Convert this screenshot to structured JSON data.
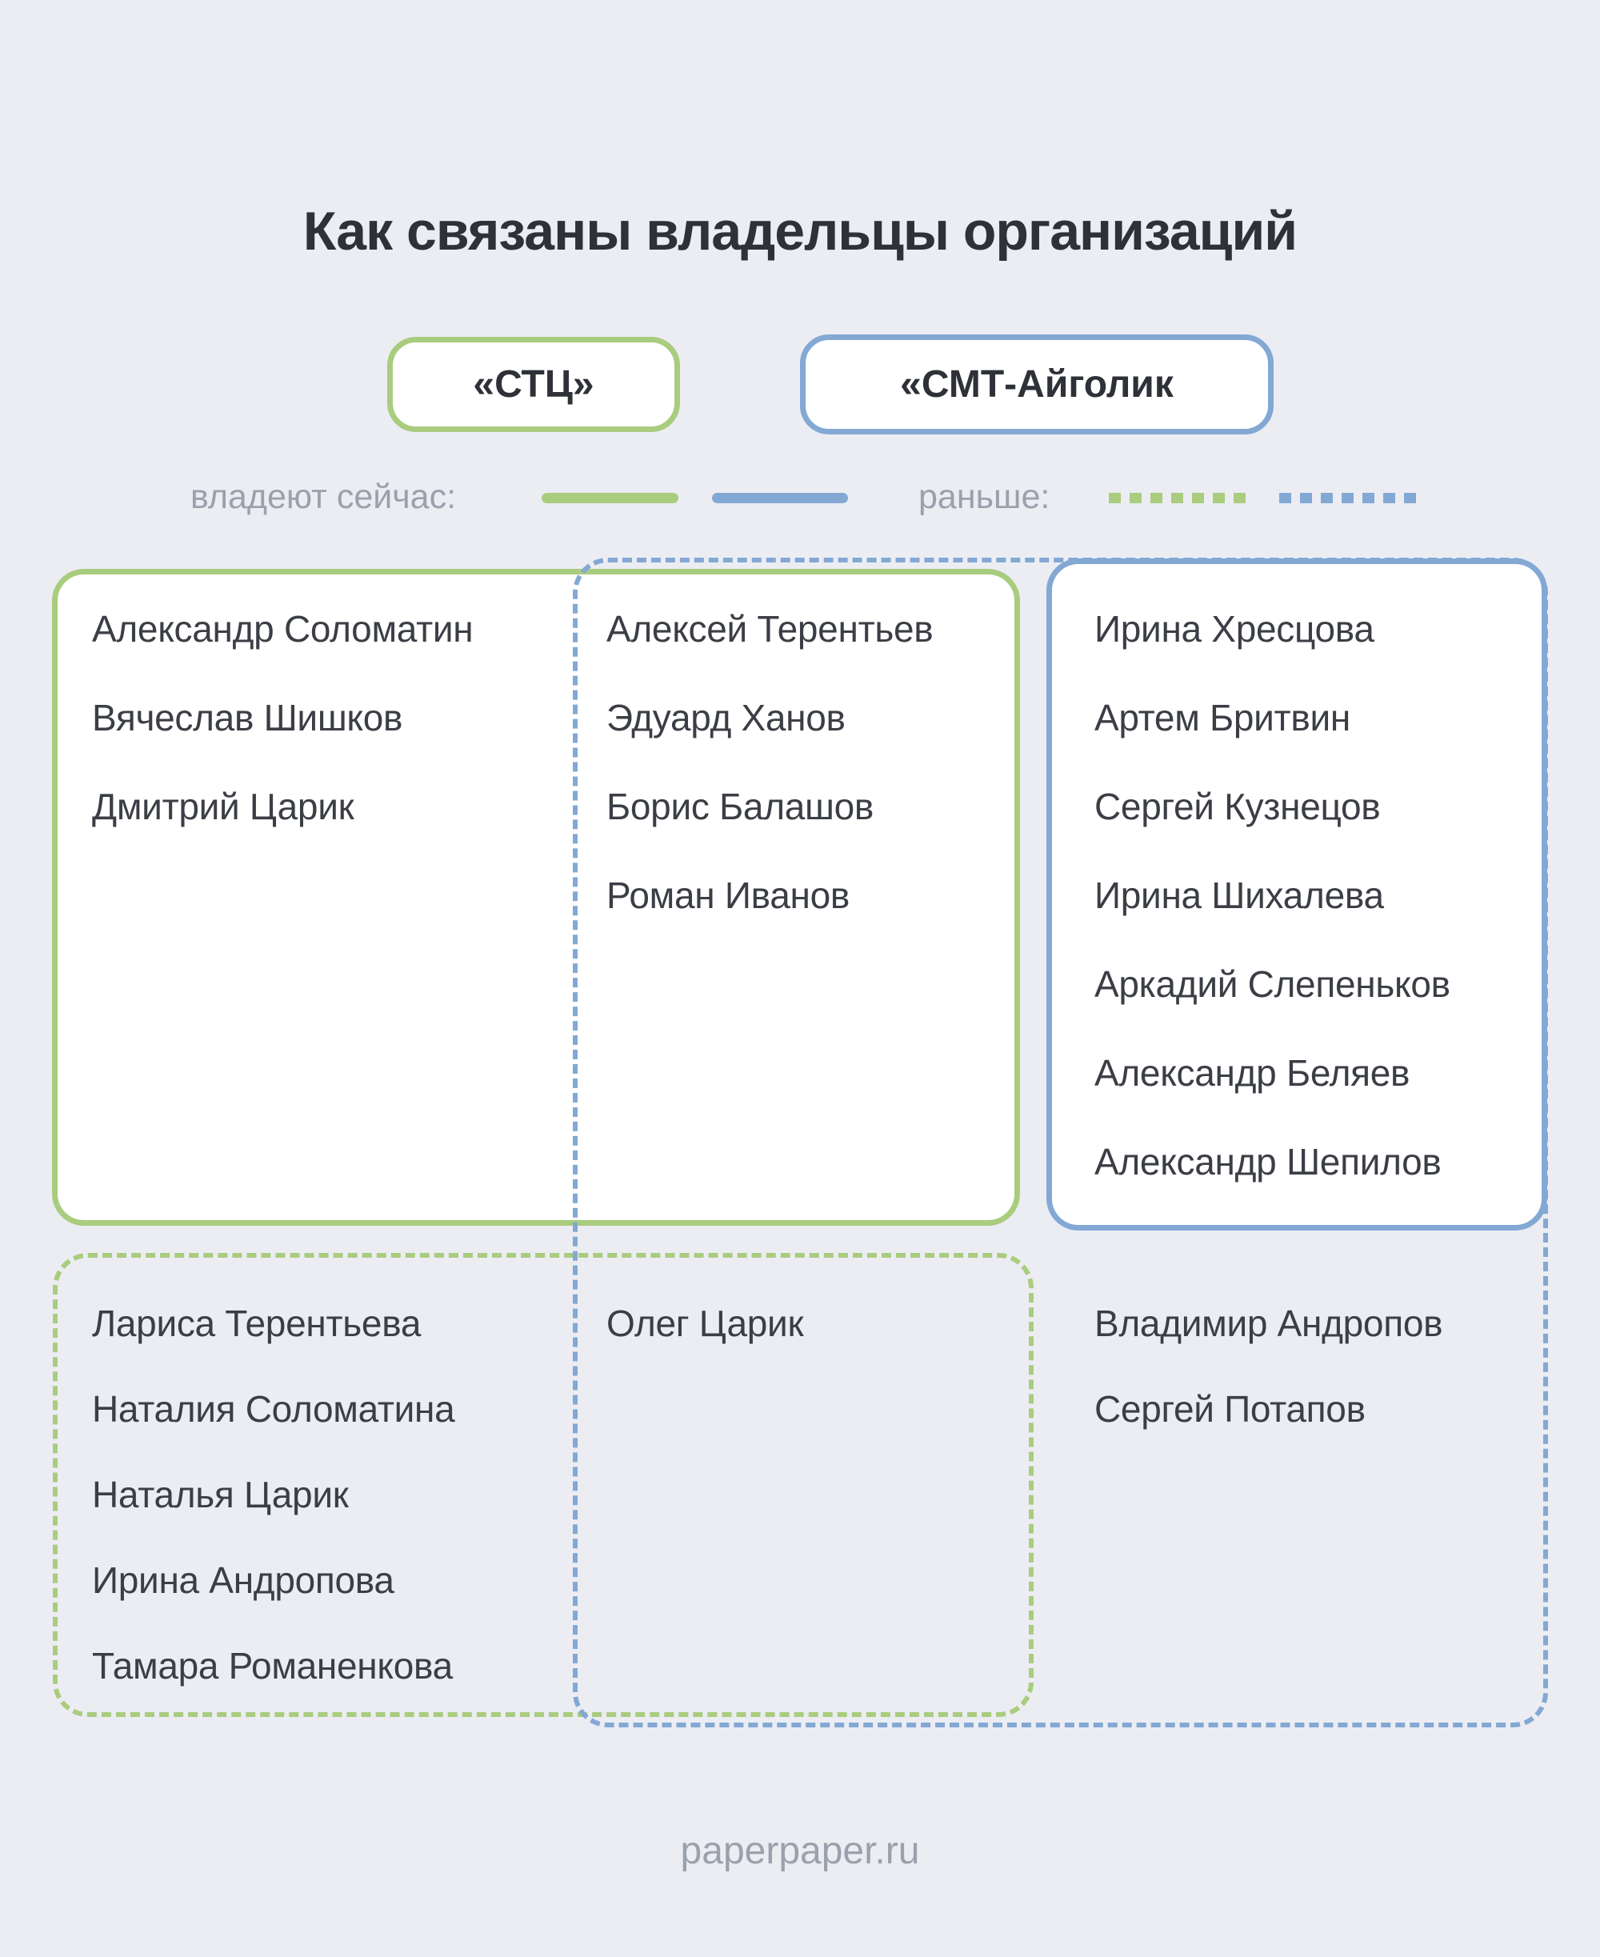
{
  "title": "Как связаны владельцы организаций",
  "orgs": {
    "stc": {
      "label": "«СТЦ»"
    },
    "smt": {
      "label": "«СМТ-Айголик"
    }
  },
  "legend": {
    "current_label": "владеют сейчас:",
    "former_label": "раньше:"
  },
  "owners": {
    "stc_current_only": [
      "Александр Соломатин",
      "Вячеслав Шишков",
      "Дмитрий Царик"
    ],
    "stc_current_smt_former": [
      "Алексей Терентьев",
      "Эдуард Ханов",
      "Борис Балашов",
      "Роман Иванов"
    ],
    "smt_current": [
      "Ирина Хресцова",
      "Артем Бритвин",
      "Сергей Кузнецов",
      "Ирина Шихалева",
      "Аркадий Слепеньков",
      "Александр Беляев",
      "Александр Шепилов"
    ],
    "stc_former_only": [
      "Лариса Терентьева",
      "Наталия Соломатина",
      "Наталья Царик",
      "Ирина Андропова",
      "Тамара Романенкова"
    ],
    "both_former": [
      "Олег Царик"
    ],
    "smt_former_only": [
      "Владимир Андропов",
      "Сергей Потапов"
    ]
  },
  "footer": "paperpaper.ru",
  "colors": {
    "green": "#a9cc7e",
    "blue": "#83a8d4",
    "bg": "#ecedf3"
  }
}
